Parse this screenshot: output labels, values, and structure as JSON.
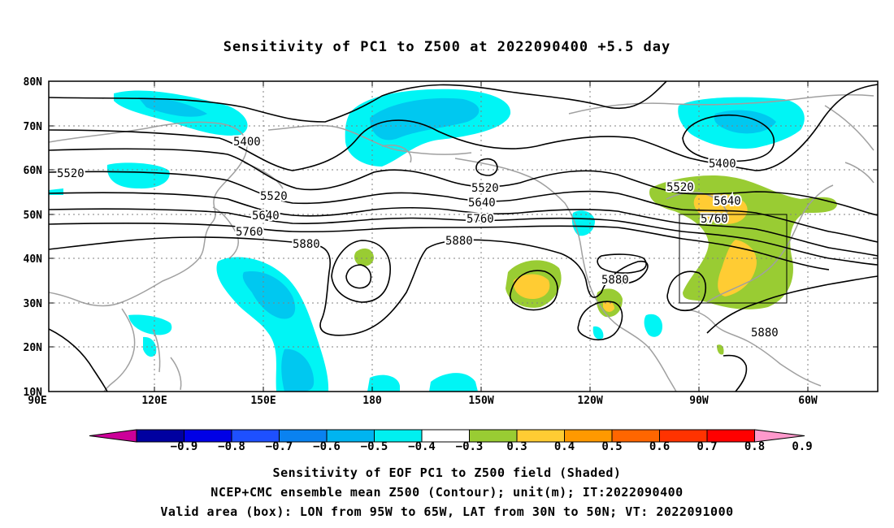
{
  "title": "Sensitivity of PC1 to Z500 at 2022090400 +5.5 day",
  "map": {
    "lat_ticks": [
      "80N",
      "70N",
      "60N",
      "50N",
      "40N",
      "30N",
      "20N",
      "10N"
    ],
    "lon_ticks": [
      "90E",
      "120E",
      "150E",
      "180",
      "150W",
      "120W",
      "90W",
      "60W"
    ],
    "contour_labels": [
      "5400",
      "5400",
      "5520",
      "5520",
      "5520",
      "5520",
      "5640",
      "5640",
      "5640",
      "5760",
      "5760",
      "5760",
      "5880",
      "5880",
      "5880",
      "5880"
    ],
    "valid_box": {
      "lon_from": "95W",
      "lon_to": "65W",
      "lat_from": "30N",
      "lat_to": "50N"
    },
    "colors": {
      "neg_light": "#00f5f5",
      "neg_mid": "#00c8f0",
      "neg_dark": "#0096f0",
      "pos_green": "#99cc33",
      "pos_yellow": "#ffcc33",
      "contour": "#000000",
      "coast": "#a0a0a0",
      "grid": "#808080"
    }
  },
  "colorbar": {
    "labels": [
      "−0.9",
      "−0.8",
      "−0.7",
      "−0.6",
      "−0.5",
      "−0.4",
      "−0.3",
      "0.3",
      "0.4",
      "0.5",
      "0.6",
      "0.7",
      "0.8",
      "0.9"
    ],
    "colors": [
      "#cc0099",
      "#0000a0",
      "#0000e6",
      "#1e50ff",
      "#0a82f0",
      "#00b4f0",
      "#00f0f0",
      "#ffffff",
      "#99cc33",
      "#ffcc33",
      "#ff9900",
      "#ff6600",
      "#ff3300",
      "#ff0000",
      "#ff99cc"
    ]
  },
  "footer": {
    "line1": "Sensitivity of EOF PC1 to Z500 field (Shaded)",
    "line2": "NCEP+CMC ensemble mean Z500 (Contour); unit(m); IT:2022090400",
    "line3": "Valid area (box): LON from 95W to 65W, LAT from 30N to 50N; VT: 2022091000"
  }
}
